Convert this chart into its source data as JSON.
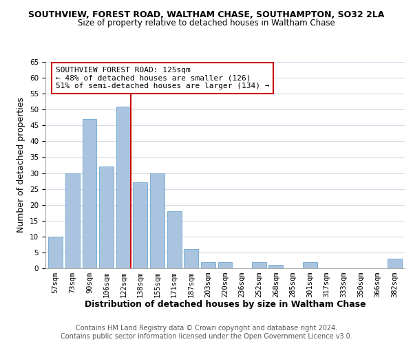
{
  "title": "SOUTHVIEW, FOREST ROAD, WALTHAM CHASE, SOUTHAMPTON, SO32 2LA",
  "subtitle": "Size of property relative to detached houses in Waltham Chase",
  "xlabel": "Distribution of detached houses by size in Waltham Chase",
  "ylabel": "Number of detached properties",
  "footer_line1": "Contains HM Land Registry data © Crown copyright and database right 2024.",
  "footer_line2": "Contains public sector information licensed under the Open Government Licence v3.0.",
  "bar_labels": [
    "57sqm",
    "73sqm",
    "90sqm",
    "106sqm",
    "122sqm",
    "138sqm",
    "155sqm",
    "171sqm",
    "187sqm",
    "203sqm",
    "220sqm",
    "236sqm",
    "252sqm",
    "268sqm",
    "285sqm",
    "301sqm",
    "317sqm",
    "333sqm",
    "350sqm",
    "366sqm",
    "382sqm"
  ],
  "bar_values": [
    10,
    30,
    47,
    32,
    51,
    27,
    30,
    18,
    6,
    2,
    2,
    0,
    2,
    1,
    0,
    2,
    0,
    0,
    0,
    0,
    3
  ],
  "bar_color": "#aac4e0",
  "bar_edge_color": "#7bafd4",
  "highlight_bar_index": 4,
  "highlight_color": "#cc0000",
  "annotation_text": "SOUTHVIEW FOREST ROAD: 125sqm\n← 48% of detached houses are smaller (126)\n51% of semi-detached houses are larger (134) →",
  "annotation_box_color": "#cc0000",
  "ylim": [
    0,
    65
  ],
  "yticks": [
    0,
    5,
    10,
    15,
    20,
    25,
    30,
    35,
    40,
    45,
    50,
    55,
    60,
    65
  ],
  "background_color": "#ffffff",
  "grid_color": "#d0dce8",
  "title_fontsize": 9,
  "subtitle_fontsize": 8.5,
  "axis_label_fontsize": 9,
  "tick_fontsize": 7.5,
  "annotation_fontsize": 8,
  "footer_fontsize": 7
}
